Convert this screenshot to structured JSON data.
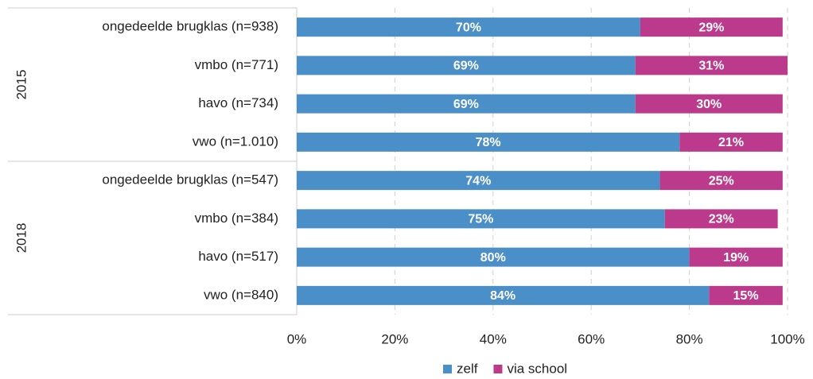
{
  "chart_data": {
    "type": "stacked-barh",
    "groups": [
      {
        "name": "2015",
        "categories": [
          "ongedeelde brugklas (n=938)",
          "vmbo (n=771)",
          "havo (n=734)",
          "vwo (n=1.010)"
        ]
      },
      {
        "name": "2018",
        "categories": [
          "ongedeelde brugklas (n=547)",
          "vmbo (n=384)",
          "havo (n=517)",
          "vwo (n=840)"
        ]
      }
    ],
    "series": [
      {
        "name": "zelf",
        "color": "#4a8fc7",
        "values": [
          70,
          69,
          69,
          78,
          74,
          75,
          80,
          84
        ],
        "value_labels": [
          "70%",
          "69%",
          "69%",
          "78%",
          "74%",
          "75%",
          "80%",
          "84%"
        ]
      },
      {
        "name": "via school",
        "color": "#bc3a8c",
        "values": [
          29,
          31,
          30,
          21,
          25,
          23,
          19,
          15
        ],
        "value_labels": [
          "29%",
          "31%",
          "30%",
          "21%",
          "25%",
          "23%",
          "19%",
          "15%"
        ]
      }
    ],
    "xlim": [
      0,
      100
    ],
    "xticks": [
      {
        "value": 0,
        "label": "0%"
      },
      {
        "value": 20,
        "label": "20%"
      },
      {
        "value": 40,
        "label": "40%"
      },
      {
        "value": 60,
        "label": "60%"
      },
      {
        "value": 80,
        "label": "80%"
      },
      {
        "value": 100,
        "label": "100%"
      }
    ],
    "grid": true,
    "legend": "bottom"
  }
}
